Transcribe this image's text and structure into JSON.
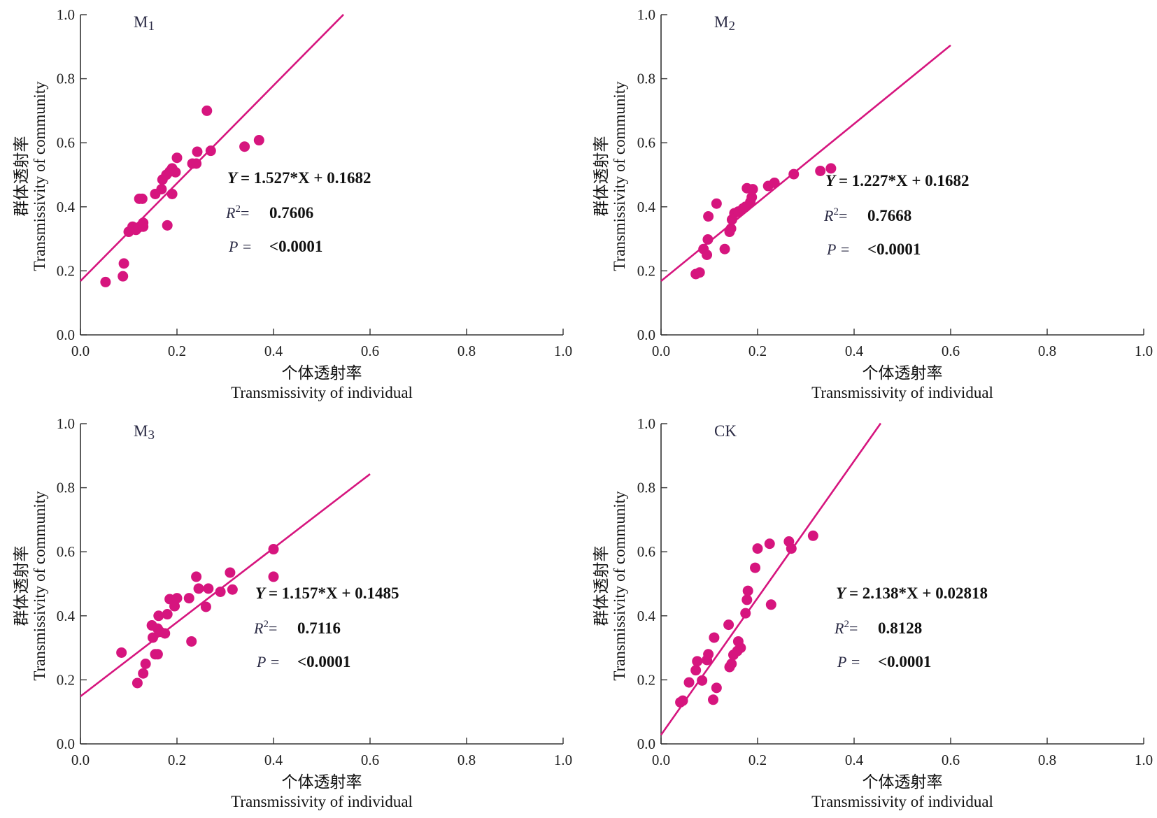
{
  "colors": {
    "marker": "#d6157e",
    "line": "#d6157e",
    "axis": "#333333",
    "text": "#1a1a1a"
  },
  "axes": {
    "xlabel_cn": "个体透射率",
    "xlabel_en": "Transmissivity of individual",
    "ylabel_cn": "群体透射率",
    "ylabel_en": "Transmissivity of community",
    "xticks": [
      "0.0",
      "0.2",
      "0.4",
      "0.6",
      "0.8",
      "1.0"
    ],
    "yticks": [
      "0.0",
      "0.2",
      "0.4",
      "0.6",
      "0.8",
      "1.0"
    ]
  },
  "chart_data": [
    {
      "type": "scatter",
      "label_main": "M",
      "label_sub": "1",
      "xlim": [
        0,
        1
      ],
      "ylim": [
        0,
        1
      ],
      "grid": false,
      "fit": {
        "slope": 1.527,
        "intercept": 0.1682,
        "x_range": [
          0,
          0.545
        ]
      },
      "equation": "= 1.527*X + 0.1682",
      "r2": "0.7606",
      "p": "<0.0001",
      "points": [
        [
          0.052,
          0.165
        ],
        [
          0.088,
          0.183
        ],
        [
          0.09,
          0.223
        ],
        [
          0.1,
          0.322
        ],
        [
          0.108,
          0.338
        ],
        [
          0.115,
          0.328
        ],
        [
          0.12,
          0.335
        ],
        [
          0.122,
          0.425
        ],
        [
          0.128,
          0.425
        ],
        [
          0.13,
          0.338
        ],
        [
          0.13,
          0.35
        ],
        [
          0.155,
          0.44
        ],
        [
          0.168,
          0.455
        ],
        [
          0.17,
          0.485
        ],
        [
          0.178,
          0.5
        ],
        [
          0.18,
          0.342
        ],
        [
          0.185,
          0.51
        ],
        [
          0.19,
          0.44
        ],
        [
          0.19,
          0.52
        ],
        [
          0.197,
          0.508
        ],
        [
          0.2,
          0.553
        ],
        [
          0.232,
          0.535
        ],
        [
          0.24,
          0.535
        ],
        [
          0.242,
          0.572
        ],
        [
          0.262,
          0.7
        ],
        [
          0.27,
          0.575
        ],
        [
          0.34,
          0.588
        ],
        [
          0.37,
          0.608
        ]
      ]
    },
    {
      "type": "scatter",
      "label_main": "M",
      "label_sub": "2",
      "xlim": [
        0,
        1
      ],
      "ylim": [
        0,
        1
      ],
      "grid": false,
      "fit": {
        "slope": 1.227,
        "intercept": 0.1682,
        "x_range": [
          0,
          0.6
        ]
      },
      "equation": "= 1.227*X + 0.1682",
      "r2": "0.7668",
      "p": "<0.0001",
      "points": [
        [
          0.072,
          0.19
        ],
        [
          0.08,
          0.195
        ],
        [
          0.088,
          0.268
        ],
        [
          0.095,
          0.25
        ],
        [
          0.097,
          0.298
        ],
        [
          0.098,
          0.37
        ],
        [
          0.115,
          0.41
        ],
        [
          0.132,
          0.268
        ],
        [
          0.142,
          0.322
        ],
        [
          0.145,
          0.332
        ],
        [
          0.147,
          0.36
        ],
        [
          0.152,
          0.38
        ],
        [
          0.16,
          0.385
        ],
        [
          0.17,
          0.395
        ],
        [
          0.175,
          0.4
        ],
        [
          0.178,
          0.458
        ],
        [
          0.185,
          0.415
        ],
        [
          0.188,
          0.43
        ],
        [
          0.19,
          0.455
        ],
        [
          0.222,
          0.465
        ],
        [
          0.235,
          0.475
        ],
        [
          0.275,
          0.502
        ],
        [
          0.33,
          0.512
        ],
        [
          0.352,
          0.52
        ]
      ]
    },
    {
      "type": "scatter",
      "label_main": "M",
      "label_sub": "3",
      "xlim": [
        0,
        1
      ],
      "ylim": [
        0,
        1
      ],
      "grid": false,
      "fit": {
        "slope": 1.157,
        "intercept": 0.1485,
        "x_range": [
          0,
          0.6
        ]
      },
      "equation": "= 1.157*X + 0.1485",
      "r2": "0.7116",
      "p": "<0.0001",
      "points": [
        [
          0.085,
          0.285
        ],
        [
          0.118,
          0.19
        ],
        [
          0.13,
          0.22
        ],
        [
          0.135,
          0.25
        ],
        [
          0.148,
          0.37
        ],
        [
          0.15,
          0.332
        ],
        [
          0.155,
          0.28
        ],
        [
          0.16,
          0.28
        ],
        [
          0.16,
          0.36
        ],
        [
          0.162,
          0.4
        ],
        [
          0.165,
          0.35
        ],
        [
          0.175,
          0.345
        ],
        [
          0.18,
          0.405
        ],
        [
          0.185,
          0.452
        ],
        [
          0.195,
          0.43
        ],
        [
          0.2,
          0.455
        ],
        [
          0.225,
          0.455
        ],
        [
          0.23,
          0.32
        ],
        [
          0.24,
          0.522
        ],
        [
          0.245,
          0.485
        ],
        [
          0.26,
          0.428
        ],
        [
          0.265,
          0.485
        ],
        [
          0.29,
          0.475
        ],
        [
          0.31,
          0.535
        ],
        [
          0.315,
          0.482
        ],
        [
          0.4,
          0.608
        ],
        [
          0.4,
          0.522
        ]
      ]
    },
    {
      "type": "scatter",
      "label_main": "CK",
      "label_sub": "",
      "xlim": [
        0,
        1
      ],
      "ylim": [
        0,
        1
      ],
      "grid": false,
      "fit": {
        "slope": 2.138,
        "intercept": 0.02818,
        "x_range": [
          0,
          0.455
        ]
      },
      "equation": "= 2.138*X + 0.02818",
      "r2": "0.8128",
      "p": "<0.0001",
      "points": [
        [
          0.04,
          0.13
        ],
        [
          0.045,
          0.135
        ],
        [
          0.058,
          0.192
        ],
        [
          0.072,
          0.23
        ],
        [
          0.075,
          0.258
        ],
        [
          0.085,
          0.198
        ],
        [
          0.095,
          0.262
        ],
        [
          0.098,
          0.28
        ],
        [
          0.108,
          0.138
        ],
        [
          0.11,
          0.332
        ],
        [
          0.115,
          0.175
        ],
        [
          0.14,
          0.372
        ],
        [
          0.142,
          0.24
        ],
        [
          0.146,
          0.25
        ],
        [
          0.15,
          0.278
        ],
        [
          0.158,
          0.29
        ],
        [
          0.16,
          0.32
        ],
        [
          0.165,
          0.3
        ],
        [
          0.175,
          0.408
        ],
        [
          0.178,
          0.45
        ],
        [
          0.18,
          0.478
        ],
        [
          0.195,
          0.55
        ],
        [
          0.2,
          0.61
        ],
        [
          0.225,
          0.625
        ],
        [
          0.228,
          0.435
        ],
        [
          0.265,
          0.632
        ],
        [
          0.27,
          0.61
        ],
        [
          0.315,
          0.65
        ]
      ]
    }
  ]
}
